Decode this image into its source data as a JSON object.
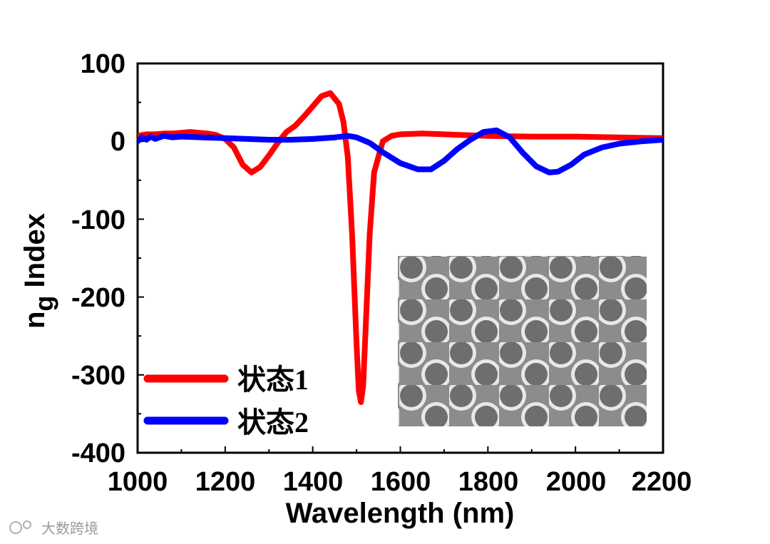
{
  "chart_data": {
    "type": "line",
    "title": "",
    "xlabel": "Wavelength (nm)",
    "ylabel_main": "n",
    "ylabel_sub": "g",
    "ylabel_rest": " Index",
    "xlim": [
      1000,
      2200
    ],
    "ylim": [
      -400,
      100
    ],
    "xticks": [
      "1000",
      "1200",
      "1400",
      "1600",
      "1800",
      "2000",
      "2200"
    ],
    "yticks": [
      "100",
      "0",
      "-100",
      "-200",
      "-300",
      "-400"
    ],
    "xtick_values": [
      1000,
      1200,
      1400,
      1600,
      1800,
      2000,
      2200
    ],
    "ytick_values": [
      100,
      0,
      -100,
      -200,
      -300,
      -400
    ],
    "legend_position": "bottom-left",
    "series": [
      {
        "name": "状态1",
        "color": "#ff0000",
        "x": [
          1000,
          1020,
          1040,
          1060,
          1080,
          1100,
          1120,
          1140,
          1160,
          1180,
          1200,
          1220,
          1240,
          1260,
          1280,
          1300,
          1320,
          1340,
          1360,
          1380,
          1400,
          1420,
          1440,
          1460,
          1470,
          1480,
          1490,
          1500,
          1505,
          1510,
          1515,
          1520,
          1530,
          1540,
          1560,
          1580,
          1600,
          1650,
          1700,
          1800,
          1900,
          2000,
          2100,
          2200
        ],
        "values": [
          7,
          9,
          9,
          10,
          10,
          11,
          12,
          11,
          10,
          8,
          3,
          -8,
          -30,
          -40,
          -33,
          -18,
          -2,
          12,
          20,
          32,
          45,
          58,
          62,
          48,
          25,
          -20,
          -120,
          -260,
          -320,
          -335,
          -315,
          -250,
          -120,
          -40,
          0,
          7,
          9,
          10,
          9,
          7,
          6,
          6,
          5,
          4
        ]
      },
      {
        "name": "状态2",
        "color": "#0000ff",
        "x": [
          1000,
          1010,
          1020,
          1030,
          1040,
          1060,
          1080,
          1100,
          1150,
          1200,
          1250,
          1300,
          1350,
          1400,
          1450,
          1480,
          1500,
          1530,
          1560,
          1600,
          1640,
          1670,
          1700,
          1730,
          1760,
          1790,
          1820,
          1850,
          1880,
          1910,
          1940,
          1960,
          1990,
          2020,
          2060,
          2100,
          2150,
          2200
        ],
        "values": [
          0,
          5,
          2,
          6,
          3,
          7,
          5,
          6,
          5,
          4,
          3,
          2,
          2,
          3,
          5,
          7,
          5,
          -2,
          -14,
          -28,
          -36,
          -36,
          -25,
          -10,
          2,
          12,
          14,
          5,
          -15,
          -32,
          -40,
          -39,
          -30,
          -17,
          -8,
          -3,
          0,
          2
        ]
      }
    ]
  },
  "inset": {
    "description_label": "SEM image of hole array"
  },
  "watermark": {
    "text": "大数跨境"
  }
}
